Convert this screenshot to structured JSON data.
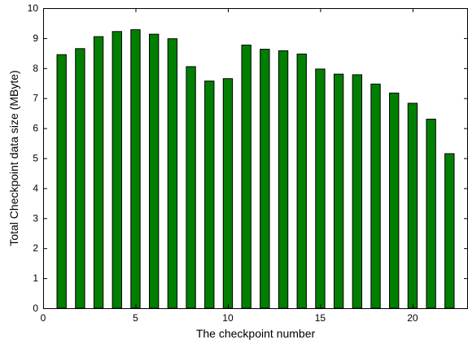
{
  "chart_data": {
    "type": "bar",
    "categories": [
      1,
      2,
      3,
      4,
      5,
      6,
      7,
      8,
      9,
      10,
      11,
      12,
      13,
      14,
      15,
      16,
      17,
      18,
      19,
      20,
      21,
      22
    ],
    "values": [
      8.45,
      8.65,
      9.05,
      9.22,
      9.28,
      9.13,
      8.98,
      8.05,
      7.57,
      7.65,
      8.77,
      8.63,
      8.58,
      8.47,
      7.97,
      7.8,
      7.78,
      7.47,
      7.17,
      6.83,
      6.3,
      5.15
    ],
    "xlabel": "The checkpoint number",
    "ylabel": "Total Checkpoint data size (MByte)",
    "xlim": [
      0,
      23
    ],
    "ylim": [
      0,
      10
    ],
    "xticks": [
      0,
      5,
      10,
      15,
      20
    ],
    "yticks": [
      0,
      1,
      2,
      3,
      4,
      5,
      6,
      7,
      8,
      9,
      10
    ],
    "grid": false,
    "bar_color": "#007f00",
    "bar_edge_color": "#000000"
  }
}
